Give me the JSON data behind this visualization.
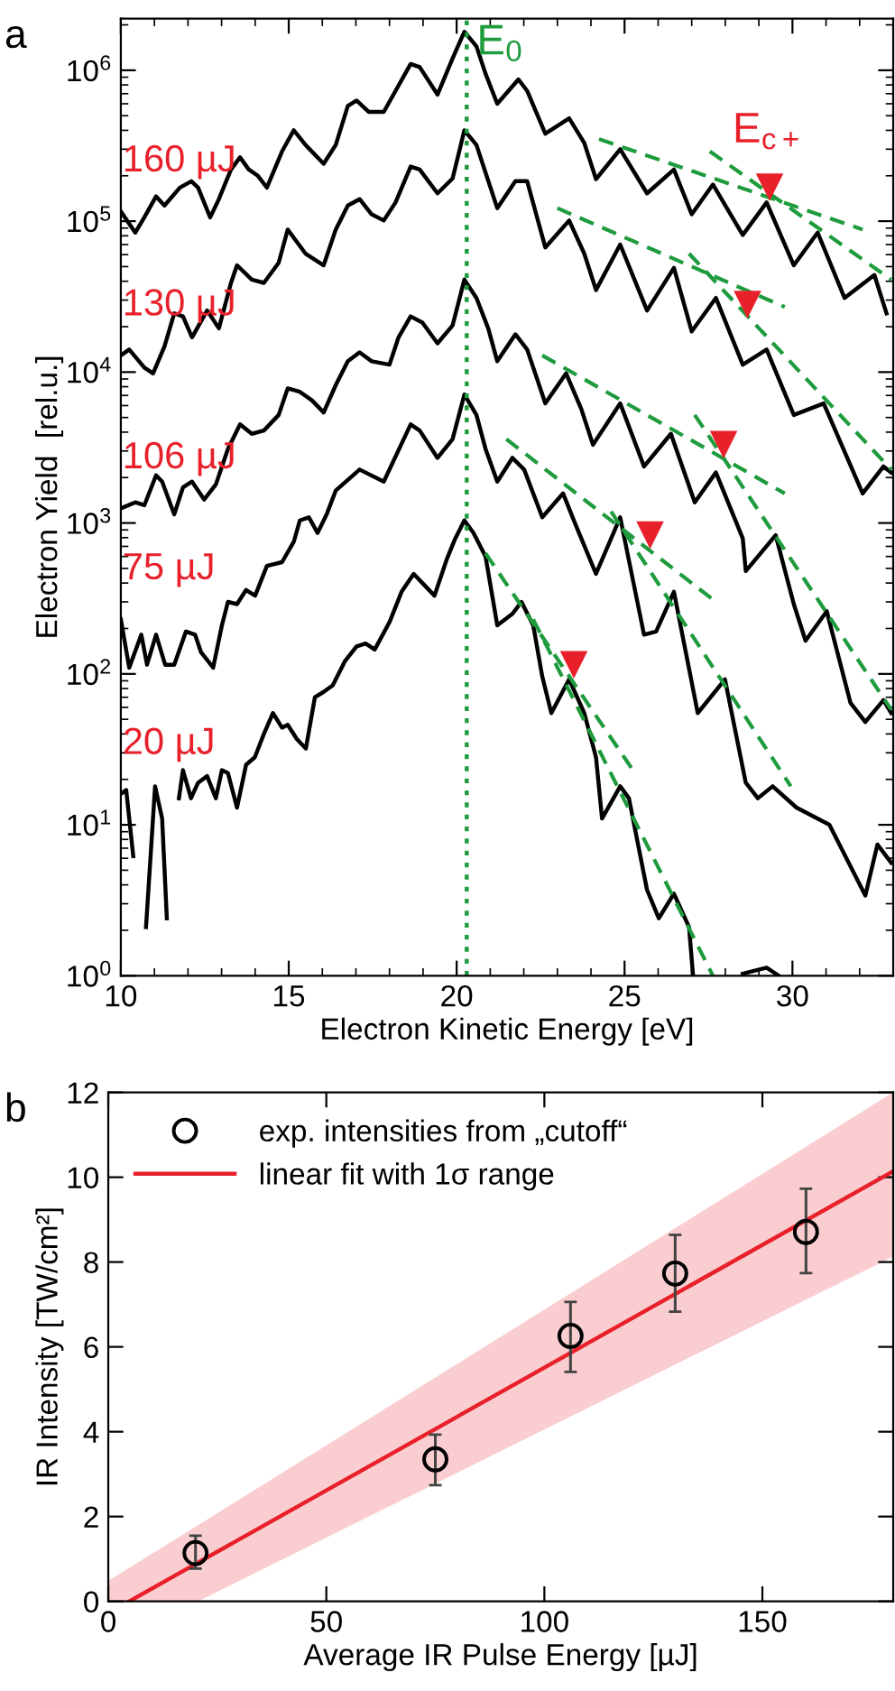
{
  "chart_data": [
    {
      "type": "line",
      "title": "a",
      "xlabel": "Electron Kinetic Energy [eV]",
      "ylabel": "Electron Yield  [rel.u.]",
      "log": true,
      "xlim": [
        10,
        33
      ],
      "ylim": [
        1,
        2200000
      ],
      "xticks": [
        10,
        15,
        20,
        25,
        30
      ],
      "yticks": [
        {
          "value": 1,
          "label": "10$^{0}$"
        },
        {
          "value": 10,
          "label": "10$^{1}$"
        },
        {
          "value": 100,
          "label": "10$^{2}$"
        },
        {
          "value": 1000,
          "label": "10$^{3}$"
        },
        {
          "value": 10000,
          "label": "10$^{4}$"
        },
        {
          "value": 100000,
          "label": "10$^{5}$"
        },
        {
          "value": 1000000,
          "label": "10$^{6}$"
        }
      ],
      "ref_lines": [
        {
          "axis": "x",
          "value": 20.3,
          "label": "E$_{0}$",
          "color": "#1e9b3c",
          "line_style": "dotted"
        }
      ],
      "annotations": [
        {
          "text": "E$_{c+}$",
          "x": 29.32,
          "y": 146000
        }
      ],
      "series": [
        {
          "name": "160 µJ",
          "color": "#000000",
          "x": [
            10.0,
            10.43,
            10.7,
            11.05,
            11.3,
            11.76,
            12.1,
            12.3,
            12.66,
            12.92,
            13.28,
            13.55,
            13.81,
            14.08,
            14.35,
            14.8,
            15.15,
            15.5,
            16.04,
            16.4,
            16.76,
            17.02,
            17.38,
            17.83,
            18.18,
            18.63,
            18.9,
            19.43,
            19.88,
            20.23,
            20.59,
            20.86,
            21.21,
            21.84,
            22.1,
            22.64,
            23.35,
            23.8,
            24.15,
            24.87,
            25.67,
            26.47,
            27.0,
            27.63,
            28.52,
            29.23,
            30.04,
            30.75,
            31.55,
            32.44,
            32.8
          ],
          "values": [
            116000,
            84000,
            106000,
            146000,
            127000,
            167000,
            184000,
            167000,
            106000,
            140000,
            220000,
            265000,
            220000,
            200000,
            167000,
            290000,
            400000,
            320000,
            240000,
            320000,
            580000,
            630000,
            530000,
            530000,
            730000,
            1100000,
            1050000,
            690000,
            1200000,
            1800000,
            1440000,
            950000,
            600000,
            870000,
            730000,
            380000,
            480000,
            330000,
            190000,
            300000,
            153000,
            220000,
            111000,
            175000,
            81000,
            133000,
            51000,
            84000,
            31000,
            44000,
            24500
          ]
        },
        {
          "name": "130 µJ",
          "color": "#000000",
          "x": [
            10.0,
            10.25,
            10.7,
            10.96,
            11.3,
            11.59,
            11.85,
            12.12,
            12.57,
            12.92,
            13.28,
            13.46,
            13.9,
            14.26,
            14.7,
            14.97,
            15.24,
            15.5,
            16.04,
            16.4,
            16.76,
            17.11,
            17.47,
            17.83,
            18.18,
            18.63,
            18.9,
            19.43,
            19.88,
            20.23,
            20.59,
            20.86,
            21.21,
            21.75,
            22.1,
            22.64,
            23.35,
            23.8,
            24.15,
            24.87,
            25.67,
            26.47,
            27.0,
            27.72,
            28.52,
            29.23,
            30.04,
            30.93,
            32.09,
            32.71,
            32.94
          ],
          "values": [
            12900,
            14100,
            10700,
            9800,
            14800,
            24500,
            23400,
            17000,
            25600,
            19500,
            39000,
            51000,
            41000,
            39000,
            53000,
            88000,
            73000,
            61000,
            51000,
            88000,
            127000,
            140000,
            111000,
            101000,
            133000,
            230000,
            220000,
            153000,
            192000,
            400000,
            320000,
            210000,
            122000,
            184000,
            184000,
            67000,
            101000,
            61000,
            35000,
            70000,
            25600,
            49000,
            18600,
            31000,
            11200,
            14100,
            5200,
            6200,
            1570,
            2370,
            2160
          ]
        },
        {
          "name": "106 µJ",
          "color": "#000000",
          "x": [
            10.0,
            10.43,
            10.7,
            11.05,
            11.23,
            11.59,
            11.85,
            12.12,
            12.48,
            12.83,
            13.19,
            13.55,
            13.9,
            14.26,
            14.7,
            14.97,
            15.33,
            15.69,
            16.04,
            16.4,
            16.76,
            17.11,
            17.47,
            18.0,
            18.27,
            18.63,
            18.98,
            19.43,
            19.88,
            20.23,
            20.59,
            20.94,
            21.21,
            21.75,
            22.1,
            22.64,
            23.26,
            23.71,
            24.06,
            24.87,
            25.58,
            26.38,
            27.09,
            27.72,
            28.52,
            28.61,
            29.5,
            30.04,
            30.39,
            31.02,
            31.73,
            32.17,
            32.71,
            32.94
          ],
          "values": [
            1250,
            1370,
            1310,
            2070,
            1880,
            1140,
            1720,
            1880,
            1430,
            1800,
            3100,
            4500,
            3900,
            4100,
            5200,
            7800,
            7400,
            6500,
            5400,
            8200,
            11800,
            13500,
            11800,
            11200,
            17000,
            23400,
            21300,
            15500,
            20400,
            41000,
            31000,
            19500,
            11800,
            17800,
            14100,
            6200,
            9800,
            5700,
            3300,
            6200,
            2370,
            3900,
            1370,
            2160,
            790,
            480,
            830,
            290,
            166,
            260,
            64,
            48,
            67,
            55
          ]
        },
        {
          "name": "75 µJ",
          "color": "#000000",
          "x": [
            10.0,
            10.25,
            10.61,
            10.78,
            11.05,
            11.32,
            11.59,
            11.94,
            12.21,
            12.39,
            12.75,
            13.01,
            13.19,
            13.46,
            13.73,
            14.0,
            14.35,
            14.8,
            15.15,
            15.33,
            15.6,
            15.86,
            16.13,
            16.4,
            17.11,
            17.83,
            18.63,
            18.9,
            19.43,
            19.88,
            20.23,
            20.59,
            20.86,
            21.21,
            21.66,
            22.01,
            22.55,
            23.17,
            23.53,
            24.15,
            24.87,
            25.58,
            25.94,
            26.47,
            27.18,
            27.99,
            28.61,
            28.97,
            29.41,
            30.12,
            31.1,
            32.17,
            32.53,
            32.94
          ],
          "values": [
            230,
            110,
            182,
            115,
            182,
            115,
            115,
            191,
            182,
            139,
            110,
            210,
            300,
            290,
            360,
            330,
            520,
            550,
            750,
            1040,
            1090,
            860,
            1140,
            1640,
            2260,
            1880,
            4500,
            4100,
            2700,
            3600,
            7100,
            5200,
            3100,
            1880,
            2700,
            2260,
            1090,
            1570,
            990,
            460,
            1090,
            182,
            191,
            350,
            55,
            92,
            19,
            15,
            18,
            13,
            10,
            3.4,
            7.4,
            5.6
          ]
        },
        {
          "name": "20 µJ",
          "color": "#000000",
          "x": [
            10.0,
            10.16,
            10.37,
            10.55,
            10.75,
            11.02,
            11.23,
            11.37,
            11.55,
            11.73,
            11.85,
            12.09,
            12.3,
            12.57,
            12.83,
            13.01,
            13.19,
            13.46,
            13.73,
            13.99,
            14.26,
            14.53,
            14.8,
            14.97,
            15.24,
            15.51,
            15.78,
            16.04,
            16.31,
            16.67,
            17.02,
            17.29,
            17.56,
            18.0,
            18.36,
            18.72,
            18.98,
            19.34,
            19.7,
            19.96,
            20.23,
            20.5,
            20.86,
            21.21,
            21.66,
            21.93,
            22.28,
            22.55,
            22.82,
            23.35,
            23.8,
            24.15,
            24.33,
            24.87,
            25.13,
            25.67,
            26.02,
            26.47,
            26.92,
            27.04,
            27.8,
            28.52,
            29.23,
            29.59
          ],
          "values": [
            16,
            17,
            6.2,
            null,
            2.1,
            18,
            11,
            2.4,
            null,
            15,
            23,
            15,
            19,
            21,
            15,
            23,
            22,
            13,
            25,
            28,
            40,
            55,
            44,
            46,
            37,
            32,
            70,
            76,
            84,
            121,
            152,
            159,
            145,
            220,
            350,
            460,
            400,
            330,
            570,
            790,
            1040,
            860,
            600,
            210,
            250,
            300,
            210,
            96,
            55,
            92,
            55,
            28,
            11,
            18,
            15,
            3.7,
            2.4,
            3.5,
            2.1,
            1.0,
            null,
            1.03,
            1.13,
            1.0
          ]
        },
        {
          "color": "#1e9b3c",
          "line_style": "dashed",
          "x": [
            24.24,
            32.09
          ],
          "values": [
            350000,
            88000
          ]
        },
        {
          "color": "#1e9b3c",
          "line_style": "dashed",
          "x": [
            27.54,
            32.94
          ],
          "values": [
            290000,
            41000
          ]
        },
        {
          "color": "#1e9b3c",
          "line_style": "dashed",
          "x": [
            23.0,
            29.77
          ],
          "values": [
            122000,
            27000
          ]
        },
        {
          "color": "#1e9b3c",
          "line_style": "dashed",
          "x": [
            26.92,
            32.94
          ],
          "values": [
            61000,
            2260
          ]
        },
        {
          "color": "#1e9b3c",
          "line_style": "dashed",
          "x": [
            22.55,
            29.77
          ],
          "values": [
            12900,
            1570
          ]
        },
        {
          "color": "#1e9b3c",
          "line_style": "dashed",
          "x": [
            27.09,
            32.94
          ],
          "values": [
            5200,
            58
          ]
        },
        {
          "color": "#1e9b3c",
          "line_style": "dashed",
          "x": [
            21.48,
            27.72
          ],
          "values": [
            3600,
            300
          ]
        },
        {
          "color": "#1e9b3c",
          "line_style": "dashed",
          "x": [
            24.6,
            29.95
          ],
          "values": [
            1190,
            18
          ]
        },
        {
          "color": "#1e9b3c",
          "line_style": "dashed",
          "x": [
            20.86,
            25.31
          ],
          "values": [
            630,
            22
          ]
        },
        {
          "color": "#1e9b3c",
          "line_style": "dashed",
          "x": [
            22.28,
            27.63
          ],
          "values": [
            230,
            1.0
          ]
        },
        {
          "type": "scatter",
          "marker": "triangle",
          "color": "#e8202a",
          "x": [
            29.32,
            28.66,
            27.95,
            25.76,
            23.49
          ],
          "values": [
            168000,
            28000,
            3300,
            830,
            115
          ]
        }
      ]
    },
    {
      "type": "scatter",
      "title": "b",
      "xlabel": "Average IR Pulse Energy [µJ]",
      "ylabel": "IR Intensity [TW/cm²]",
      "xlim": [
        0,
        180
      ],
      "ylim": [
        0,
        12
      ],
      "xticks": [
        0,
        50,
        100,
        150
      ],
      "yticks": [
        0,
        2,
        4,
        6,
        8,
        10,
        12
      ],
      "legend": "top left",
      "series": [
        {
          "name": "exp. intensities from „cutoff“",
          "type": "scatter",
          "marker": "circle",
          "color": "#000000",
          "x": [
            20,
            75,
            106,
            130,
            160
          ],
          "values": [
            1.14,
            3.35,
            6.26,
            7.73,
            8.71
          ],
          "errors": [
            [
              0.77,
              1.55
            ],
            [
              2.74,
              3.93
            ],
            [
              5.41,
              7.06
            ],
            [
              6.83,
              8.64
            ],
            [
              7.74,
              9.73
            ]
          ]
        },
        {
          "name": "linear fit with 1σ range",
          "type": "line",
          "color": "#e8202a",
          "x": [
            0,
            4.8,
            20.5,
            180
          ],
          "values": [
            null,
            0,
            0.91,
            10.14
          ],
          "lower": [
            0,
            0,
            0,
            8.13
          ],
          "upper": [
            0.48,
            0.79,
            1.79,
            12.0
          ]
        }
      ]
    }
  ]
}
